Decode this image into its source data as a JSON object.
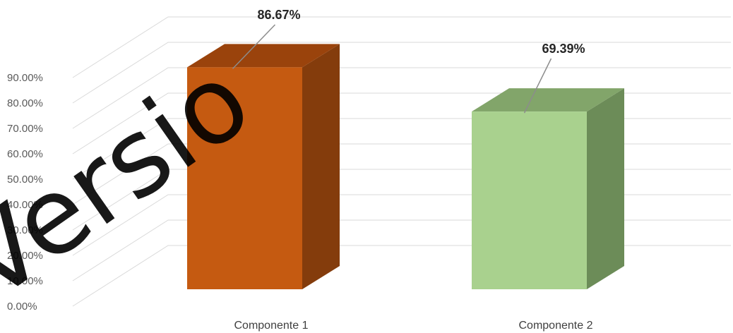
{
  "chart_data": {
    "type": "bar",
    "style": "3d-column",
    "categories": [
      "Componente 1",
      "Componente 2"
    ],
    "values": [
      86.67,
      69.39
    ],
    "data_labels": [
      "86.67%",
      "69.39%"
    ],
    "y_ticks": [
      "0.00%",
      "10.00%",
      "20.00%",
      "30.00%",
      "40.00%",
      "50.00%",
      "60.00%",
      "70.00%",
      "80.00%",
      "90.00%"
    ],
    "ylim": [
      0,
      90
    ],
    "grid": true,
    "legend": "none",
    "colors": {
      "bar1_front": "#c55a11",
      "bar1_top": "#9a430c",
      "bar1_side": "#843c0c",
      "bar2_front": "#a9d18e",
      "bar2_top": "#82a56a",
      "bar2_side": "#6c8c58",
      "grid": "#d9d9d9",
      "leader": "#8c8c8c"
    }
  },
  "watermark": "Versio"
}
